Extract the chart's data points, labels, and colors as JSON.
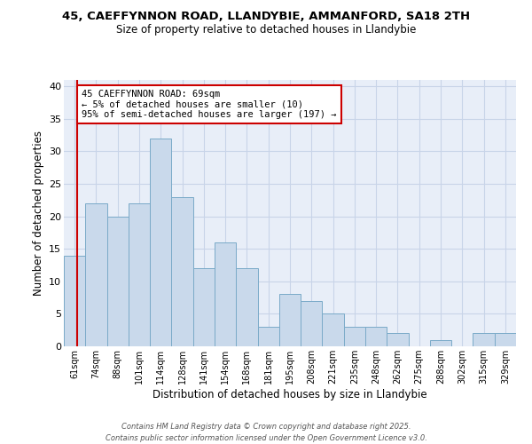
{
  "title1": "45, CAEFFYNNON ROAD, LLANDYBIE, AMMANFORD, SA18 2TH",
  "title2": "Size of property relative to detached houses in Llandybie",
  "xlabel": "Distribution of detached houses by size in Llandybie",
  "ylabel": "Number of detached properties",
  "categories": [
    "61sqm",
    "74sqm",
    "88sqm",
    "101sqm",
    "114sqm",
    "128sqm",
    "141sqm",
    "154sqm",
    "168sqm",
    "181sqm",
    "195sqm",
    "208sqm",
    "221sqm",
    "235sqm",
    "248sqm",
    "262sqm",
    "275sqm",
    "288sqm",
    "302sqm",
    "315sqm",
    "329sqm"
  ],
  "values": [
    14,
    22,
    20,
    22,
    32,
    23,
    12,
    16,
    12,
    3,
    8,
    7,
    5,
    3,
    3,
    2,
    0,
    1,
    0,
    2,
    2
  ],
  "bar_color": "#c9d9eb",
  "bar_edge_color": "#7aaac8",
  "annotation_box_text": "45 CAEFFYNNON ROAD: 69sqm\n← 5% of detached houses are smaller (10)\n95% of semi-detached houses are larger (197) →",
  "annotation_box_color": "white",
  "annotation_box_edge_color": "#cc0000",
  "annotation_line_color": "#cc0000",
  "ylim": [
    0,
    41
  ],
  "yticks": [
    0,
    5,
    10,
    15,
    20,
    25,
    30,
    35,
    40
  ],
  "footer": "Contains HM Land Registry data © Crown copyright and database right 2025.\nContains public sector information licensed under the Open Government Licence v3.0.",
  "grid_color": "#c8d4e8",
  "bg_color": "#e8eef8"
}
